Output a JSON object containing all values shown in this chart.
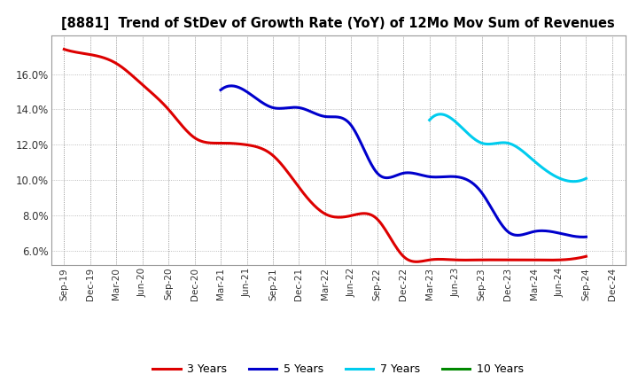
{
  "title": "[8881]  Trend of StDev of Growth Rate (YoY) of 12Mo Mov Sum of Revenues",
  "title_fontsize": 10.5,
  "background_color": "#ffffff",
  "plot_bg_color": "#ffffff",
  "grid_color": "#888888",
  "ylim": [
    0.052,
    0.182
  ],
  "yticks": [
    0.06,
    0.08,
    0.1,
    0.12,
    0.14,
    0.16
  ],
  "x_labels": [
    "Sep-19",
    "Dec-19",
    "Mar-20",
    "Jun-20",
    "Sep-20",
    "Dec-20",
    "Mar-21",
    "Jun-21",
    "Sep-21",
    "Dec-21",
    "Mar-22",
    "Jun-22",
    "Sep-22",
    "Dec-22",
    "Mar-23",
    "Jun-23",
    "Sep-23",
    "Dec-23",
    "Mar-24",
    "Jun-24",
    "Sep-24",
    "Dec-24"
  ],
  "series": {
    "3 Years": {
      "color": "#dd0000",
      "data_x": [
        0,
        1,
        2,
        3,
        4,
        5,
        6,
        7,
        8,
        9,
        10,
        11,
        12,
        13,
        14,
        15,
        16,
        17,
        18,
        19,
        20
      ],
      "data_y": [
        0.174,
        0.171,
        0.166,
        0.154,
        0.14,
        0.124,
        0.121,
        0.12,
        0.114,
        0.096,
        0.081,
        0.08,
        0.078,
        0.057,
        0.055,
        0.055,
        0.055,
        0.055,
        0.055,
        0.055,
        0.057
      ]
    },
    "5 Years": {
      "color": "#0000cc",
      "data_x": [
        6,
        7,
        8,
        9,
        10,
        11,
        12,
        13,
        14,
        15,
        16,
        17,
        18,
        19,
        20
      ],
      "data_y": [
        0.151,
        0.15,
        0.141,
        0.141,
        0.136,
        0.131,
        0.104,
        0.104,
        0.102,
        0.102,
        0.093,
        0.071,
        0.071,
        0.07,
        0.068
      ]
    },
    "7 Years": {
      "color": "#00ccee",
      "data_x": [
        14,
        15,
        16,
        17,
        18,
        19,
        20
      ],
      "data_y": [
        0.134,
        0.133,
        0.121,
        0.121,
        0.111,
        0.101,
        0.101
      ]
    },
    "10 Years": {
      "color": "#008800",
      "data_x": [],
      "data_y": []
    }
  },
  "legend_labels": [
    "3 Years",
    "5 Years",
    "7 Years",
    "10 Years"
  ],
  "legend_colors": [
    "#dd0000",
    "#0000cc",
    "#00ccee",
    "#008800"
  ],
  "linewidth": 2.2
}
